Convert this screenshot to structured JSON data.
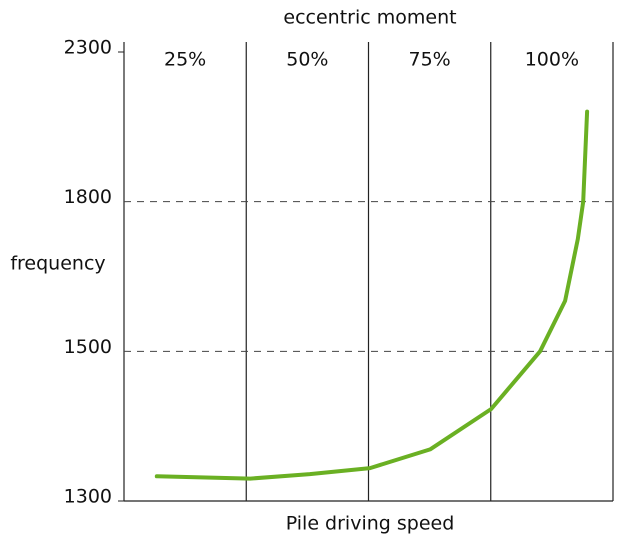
{
  "chart_data": {
    "type": "line",
    "title": "eccentric moment",
    "x_label": "Pile driving speed",
    "y_label": "frequency",
    "categories": [
      "25%",
      "50%",
      "75%",
      "100%"
    ],
    "xlim": [
      0,
      100
    ],
    "ylim": [
      1300,
      2300
    ],
    "yticks": [
      1300,
      1500,
      1800,
      2300
    ],
    "grid": true,
    "series": [
      {
        "color": "#6ab023",
        "x": [
          6.7,
          25.8,
          38,
          50.3,
          62.6,
          75.1,
          85.1,
          90.2,
          92.8,
          93.9,
          94.7
        ],
        "values": [
          1333,
          1330,
          1336,
          1344,
          1369,
          1423,
          1500,
          1601,
          1725,
          1800,
          2101
        ]
      }
    ]
  }
}
